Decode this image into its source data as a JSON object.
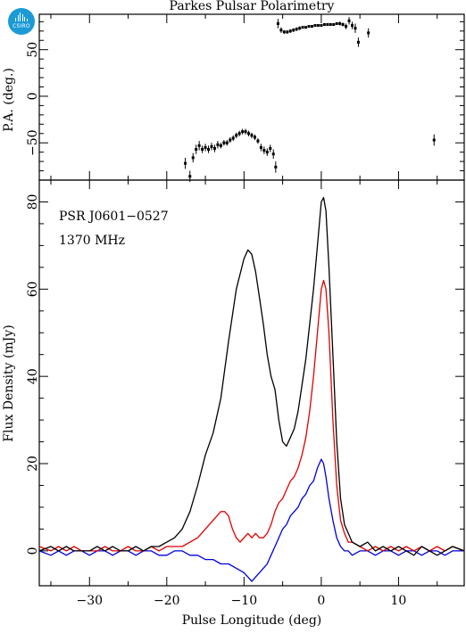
{
  "logo": {
    "text": "CSIRO",
    "icon": "csiro-logo",
    "color": "#1b9ad6"
  },
  "title": "Parkes Pulsar Polarimetry",
  "annotations": {
    "psr": "PSR J0601−0527",
    "freq": "1370 MHz"
  },
  "colors": {
    "total": "#000000",
    "linear": "#e00000",
    "circular": "#0000e0",
    "pa": "#000000"
  },
  "top_panel": {
    "ylabel": "P.A. (deg.)",
    "yticks": [
      50,
      0,
      -50
    ],
    "ylim": [
      -90,
      88
    ]
  },
  "bottom_panel": {
    "ylabel": "Flux Density (mJy)",
    "yticks": [
      0,
      20,
      40,
      60,
      80
    ],
    "ylim": [
      -8,
      85
    ],
    "xlabel": "Pulse Longitude (deg)",
    "xticks": [
      -30,
      -20,
      -10,
      0,
      10
    ],
    "xlim": [
      -36.5,
      18.5
    ]
  },
  "chart_data": [
    {
      "type": "scatter",
      "panel": "position-angle",
      "ylabel": "P.A. (deg.)",
      "xlim": [
        -36.5,
        18.5
      ],
      "ylim": [
        -90,
        88
      ],
      "points": [
        {
          "x": -17.6,
          "y": -72,
          "err": 6
        },
        {
          "x": -17.0,
          "y": -86,
          "err": 6
        },
        {
          "x": -16.6,
          "y": -66,
          "err": 5
        },
        {
          "x": -16.2,
          "y": -57,
          "err": 5
        },
        {
          "x": -15.8,
          "y": -53,
          "err": 5
        },
        {
          "x": -15.4,
          "y": -57,
          "err": 4
        },
        {
          "x": -15.0,
          "y": -55,
          "err": 4
        },
        {
          "x": -14.6,
          "y": -57,
          "err": 4
        },
        {
          "x": -14.2,
          "y": -54,
          "err": 4
        },
        {
          "x": -13.8,
          "y": -56,
          "err": 4
        },
        {
          "x": -13.4,
          "y": -52,
          "err": 4
        },
        {
          "x": -13.0,
          "y": -53,
          "err": 3
        },
        {
          "x": -12.6,
          "y": -50,
          "err": 3
        },
        {
          "x": -12.2,
          "y": -50,
          "err": 3
        },
        {
          "x": -11.8,
          "y": -47,
          "err": 3
        },
        {
          "x": -11.4,
          "y": -45,
          "err": 3
        },
        {
          "x": -11.0,
          "y": -42,
          "err": 3
        },
        {
          "x": -10.6,
          "y": -40,
          "err": 3
        },
        {
          "x": -10.2,
          "y": -38,
          "err": 3
        },
        {
          "x": -9.8,
          "y": -38,
          "err": 3
        },
        {
          "x": -9.4,
          "y": -40,
          "err": 3
        },
        {
          "x": -9.0,
          "y": -42,
          "err": 3
        },
        {
          "x": -8.6,
          "y": -44,
          "err": 3
        },
        {
          "x": -8.2,
          "y": -48,
          "err": 3
        },
        {
          "x": -7.8,
          "y": -55,
          "err": 4
        },
        {
          "x": -7.4,
          "y": -58,
          "err": 4
        },
        {
          "x": -7.0,
          "y": -60,
          "err": 4
        },
        {
          "x": -6.6,
          "y": -56,
          "err": 4
        },
        {
          "x": -6.2,
          "y": -62,
          "err": 5
        },
        {
          "x": -5.9,
          "y": -76,
          "err": 6
        },
        {
          "x": -5.6,
          "y": 78,
          "err": 5
        },
        {
          "x": -5.2,
          "y": 71,
          "err": 3
        },
        {
          "x": -4.8,
          "y": 69,
          "err": 2
        },
        {
          "x": -4.4,
          "y": 69,
          "err": 2
        },
        {
          "x": -4.0,
          "y": 70,
          "err": 2
        },
        {
          "x": -3.6,
          "y": 71,
          "err": 2
        },
        {
          "x": -3.2,
          "y": 72,
          "err": 2
        },
        {
          "x": -2.8,
          "y": 73,
          "err": 2
        },
        {
          "x": -2.4,
          "y": 74,
          "err": 1
        },
        {
          "x": -2.0,
          "y": 74,
          "err": 1
        },
        {
          "x": -1.6,
          "y": 75,
          "err": 1
        },
        {
          "x": -1.2,
          "y": 75,
          "err": 1
        },
        {
          "x": -0.8,
          "y": 76,
          "err": 1
        },
        {
          "x": -0.4,
          "y": 76,
          "err": 1
        },
        {
          "x": 0.0,
          "y": 76,
          "err": 1
        },
        {
          "x": 0.4,
          "y": 77,
          "err": 1
        },
        {
          "x": 0.8,
          "y": 77,
          "err": 1
        },
        {
          "x": 1.2,
          "y": 77,
          "err": 1
        },
        {
          "x": 1.6,
          "y": 77,
          "err": 1
        },
        {
          "x": 2.0,
          "y": 78,
          "err": 1
        },
        {
          "x": 2.4,
          "y": 78,
          "err": 2
        },
        {
          "x": 2.8,
          "y": 77,
          "err": 2
        },
        {
          "x": 3.2,
          "y": 75,
          "err": 3
        },
        {
          "x": 3.6,
          "y": 81,
          "err": 4
        },
        {
          "x": 4.0,
          "y": 76,
          "err": 4
        },
        {
          "x": 4.4,
          "y": 73,
          "err": 5
        },
        {
          "x": 4.8,
          "y": 58,
          "err": 5
        },
        {
          "x": 6.1,
          "y": 68,
          "err": 5
        },
        {
          "x": 14.6,
          "y": -47,
          "err": 6
        }
      ]
    },
    {
      "type": "line",
      "panel": "profile",
      "xlabel": "Pulse Longitude (deg)",
      "ylabel": "Flux Density (mJy)",
      "xlim": [
        -36.5,
        18.5
      ],
      "ylim": [
        -8,
        85
      ],
      "series": [
        {
          "key": "total",
          "x": [
            -36.5,
            -35,
            -34,
            -33,
            -32,
            -31,
            -30,
            -29,
            -28,
            -27,
            -26,
            -25,
            -24,
            -23,
            -22,
            -21,
            -20,
            -19,
            -18,
            -17,
            -16,
            -15,
            -14,
            -13,
            -12,
            -11,
            -10,
            -9.5,
            -9,
            -8.5,
            -8,
            -7.5,
            -7,
            -6.5,
            -6,
            -5.5,
            -5,
            -4.5,
            -4,
            -3.5,
            -3,
            -2.5,
            -2,
            -1.5,
            -1,
            -0.5,
            0,
            0.3,
            0.6,
            1,
            1.5,
            2,
            2.5,
            3,
            3.5,
            4,
            5,
            6,
            7,
            8,
            9,
            10,
            11,
            12,
            13,
            14,
            15,
            16,
            17,
            18.5
          ],
          "y": [
            0,
            1,
            0,
            1,
            0,
            0,
            0,
            1,
            0,
            1,
            0,
            0,
            1,
            0,
            1,
            1,
            2,
            3,
            5,
            9,
            15,
            22,
            27,
            35,
            48,
            60,
            67,
            69,
            68,
            64,
            58,
            52,
            45,
            40,
            37,
            30,
            25,
            24,
            26,
            28,
            32,
            38,
            44,
            52,
            60,
            70,
            80,
            81,
            78,
            65,
            45,
            25,
            12,
            6,
            4,
            2,
            1,
            2,
            0,
            1,
            0,
            1,
            0,
            -1,
            1,
            0,
            -1,
            0,
            1,
            0
          ]
        },
        {
          "key": "linear",
          "x": [
            -36.5,
            -35,
            -34,
            -33,
            -32,
            -31,
            -30,
            -29,
            -28,
            -27,
            -26,
            -25,
            -24,
            -23,
            -22,
            -21,
            -20,
            -19,
            -18,
            -17,
            -16,
            -15,
            -14,
            -13,
            -12.5,
            -12,
            -11.5,
            -11,
            -10.5,
            -10,
            -9.5,
            -9,
            -8.5,
            -8,
            -7.5,
            -7,
            -6.5,
            -6,
            -5.5,
            -5,
            -4.5,
            -4,
            -3.5,
            -3,
            -2.5,
            -2,
            -1.5,
            -1,
            -0.5,
            0,
            0.3,
            0.6,
            1,
            1.5,
            2,
            2.5,
            3,
            3.5,
            4,
            5,
            6,
            7,
            8,
            9,
            10,
            11,
            12,
            13,
            14,
            15,
            16,
            17,
            18.5
          ],
          "y": [
            1,
            0,
            1,
            0,
            1,
            0,
            0,
            0,
            1,
            0,
            0,
            1,
            0,
            0,
            1,
            0,
            1,
            1,
            1,
            2,
            3,
            5,
            7,
            9,
            9,
            8,
            5,
            3,
            2,
            3,
            4,
            3,
            4,
            3,
            3,
            4,
            6,
            9,
            11,
            12,
            14,
            16,
            17,
            19,
            22,
            26,
            32,
            40,
            50,
            60,
            62,
            60,
            50,
            30,
            15,
            7,
            4,
            2,
            2,
            1,
            0,
            1,
            0,
            1,
            0,
            1,
            0,
            1,
            0,
            1,
            0,
            1,
            0
          ]
        },
        {
          "key": "circular",
          "x": [
            -36.5,
            -35,
            -34,
            -33,
            -32,
            -31,
            -30,
            -29,
            -28,
            -27,
            -26,
            -25,
            -24,
            -23,
            -22,
            -21,
            -20,
            -19,
            -18,
            -17,
            -16,
            -15,
            -14,
            -13,
            -12,
            -11,
            -10,
            -9.5,
            -9,
            -8.5,
            -8,
            -7.5,
            -7,
            -6.5,
            -6,
            -5.5,
            -5,
            -4.5,
            -4,
            -3.5,
            -3,
            -2.5,
            -2,
            -1.5,
            -1,
            -0.5,
            0,
            0.3,
            0.6,
            1,
            1.5,
            2,
            2.5,
            3,
            3.5,
            4,
            5,
            6,
            7,
            8,
            9,
            10,
            11,
            12,
            13,
            14,
            15,
            16,
            17,
            18.5
          ],
          "y": [
            0,
            -1,
            0,
            -1,
            0,
            0,
            -1,
            0,
            0,
            -1,
            0,
            0,
            -1,
            0,
            0,
            -1,
            -1,
            0,
            0,
            -1,
            -1,
            -2,
            -2,
            -3,
            -3,
            -4,
            -5,
            -6,
            -7,
            -6,
            -5,
            -4,
            -3,
            -1,
            1,
            3,
            5,
            6,
            8,
            9,
            10,
            12,
            13,
            15,
            16,
            19,
            21,
            20,
            17,
            12,
            7,
            3,
            1,
            0,
            0,
            -1,
            0,
            0,
            -1,
            0,
            0,
            -1,
            0,
            0,
            -1,
            0,
            0,
            -1,
            0,
            0
          ]
        }
      ]
    }
  ]
}
